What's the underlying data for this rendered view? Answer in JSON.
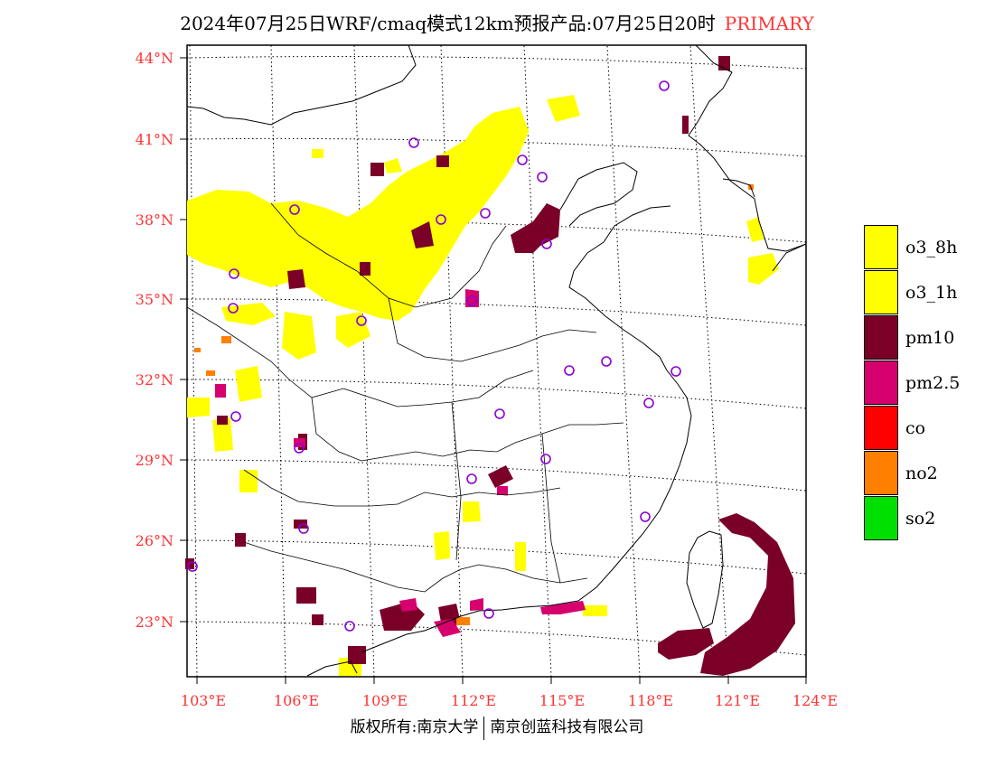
{
  "title": {
    "main": "2024年07月25日WRF/cmaq模式12km预报产品:07月25日20时",
    "tag": "PRIMARY"
  },
  "axes": {
    "lat_labels": [
      "44°N",
      "41°N",
      "38°N",
      "35°N",
      "32°N",
      "29°N",
      "26°N",
      "23°N"
    ],
    "lon_labels": [
      "103°E",
      "106°E",
      "109°E",
      "112°E",
      "115°E",
      "118°E",
      "121°E",
      "124°E"
    ]
  },
  "legend": [
    {
      "label": "o3_8h",
      "color": "#ffff00"
    },
    {
      "label": "o3_1h",
      "color": "#ffff00"
    },
    {
      "label": "pm10",
      "color": "#7a0028"
    },
    {
      "label": "pm2.5",
      "color": "#d6006e"
    },
    {
      "label": "co",
      "color": "#ff0000"
    },
    {
      "label": "no2",
      "color": "#ff7f00"
    },
    {
      "label": "so2",
      "color": "#00e000"
    }
  ],
  "footer": {
    "left": "版权所有:南京大学",
    "right": "南京创蓝科技有限公司"
  },
  "colors": {
    "o3": "#ffff00",
    "pm10": "#7a0028",
    "pm25": "#d6006e",
    "no2": "#ff7f00",
    "axis_text": "#ff3333",
    "station_marker": "#8a00d4"
  }
}
